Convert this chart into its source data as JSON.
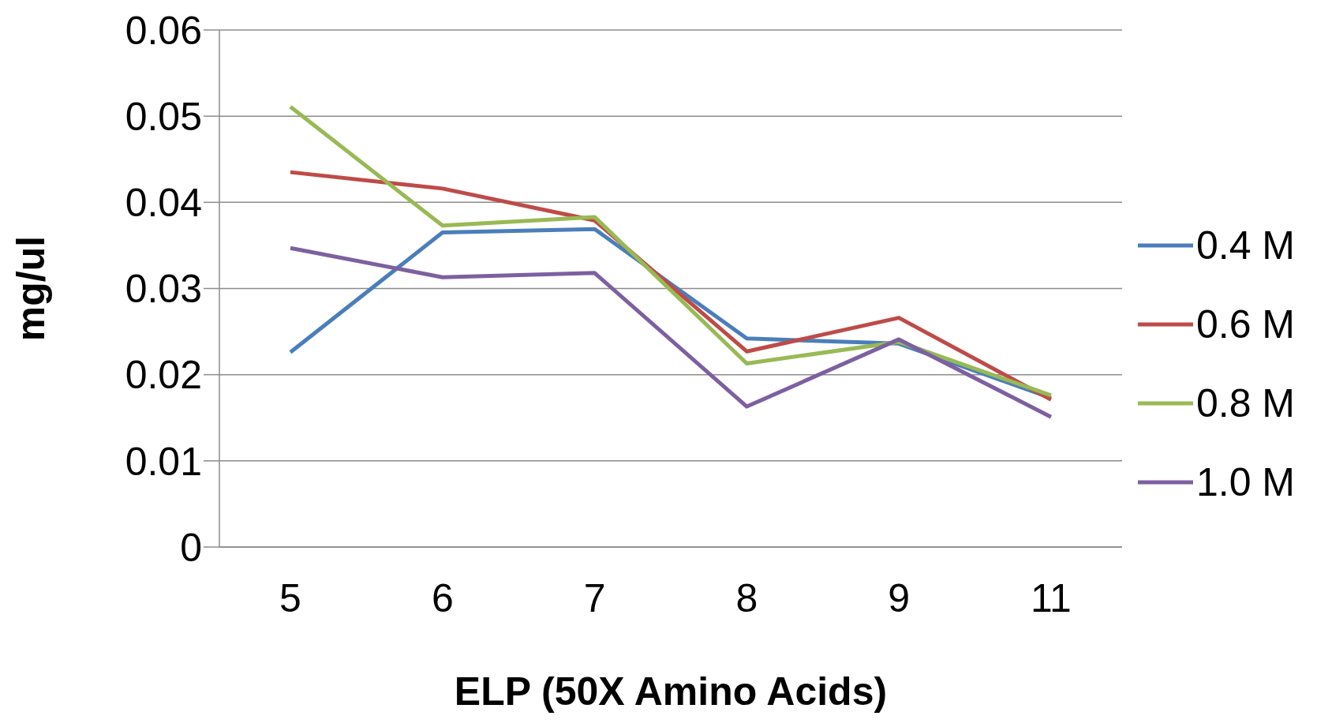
{
  "chart_data": {
    "type": "line",
    "xlabel": "ELP (50X Amino Acids)",
    "ylabel": "mg/ul",
    "categories": [
      "5",
      "6",
      "7",
      "8",
      "9",
      "11"
    ],
    "series": [
      {
        "name": "0.4 M",
        "color": "#4a7ebb",
        "values": [
          0.0226,
          0.0365,
          0.0369,
          0.0242,
          0.0236,
          0.0173
        ]
      },
      {
        "name": "0.6 M",
        "color": "#be4b48",
        "values": [
          0.0435,
          0.0416,
          0.0379,
          0.0227,
          0.0266,
          0.0171
        ]
      },
      {
        "name": "0.8 M",
        "color": "#98b954",
        "values": [
          0.0511,
          0.0373,
          0.0383,
          0.0213,
          0.0238,
          0.0176
        ]
      },
      {
        "name": "1.0 M",
        "color": "#7d60a0",
        "values": [
          0.0347,
          0.0313,
          0.0318,
          0.0163,
          0.0241,
          0.0151
        ]
      }
    ],
    "ylim": [
      0,
      0.06
    ],
    "yticks": [
      0,
      0.01,
      0.02,
      0.03,
      0.04,
      0.05,
      0.06
    ],
    "grid": "y",
    "legend": "right",
    "line_style": "solid"
  }
}
